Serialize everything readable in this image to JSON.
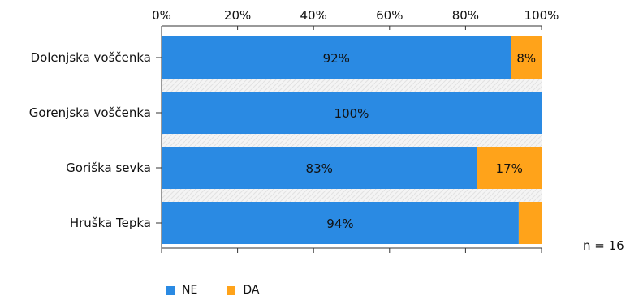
{
  "chart_data": {
    "type": "bar",
    "orientation": "horizontal",
    "stacked": true,
    "percent": true,
    "categories": [
      "Dolenjska voščenka",
      "Gorenjska voščenka",
      "Goriška sevka",
      "Hruška Tepka"
    ],
    "series": [
      {
        "name": "NE",
        "color": "#2a8ae3",
        "values": [
          92,
          100,
          83,
          94
        ],
        "labels": [
          "92%",
          "100%",
          "83%",
          "94%"
        ]
      },
      {
        "name": "DA",
        "color": "#ffa31a",
        "values": [
          8,
          0,
          17,
          6
        ],
        "labels": [
          "8%",
          "",
          "17%",
          ""
        ]
      }
    ],
    "xlim": [
      0,
      100
    ],
    "x_ticks": [
      "0%",
      "20%",
      "40%",
      "60%",
      "80%",
      "100%"
    ],
    "x_axis_position": "top",
    "legend_position": "bottom-left",
    "grid": false
  },
  "sample_size": "n = 16"
}
